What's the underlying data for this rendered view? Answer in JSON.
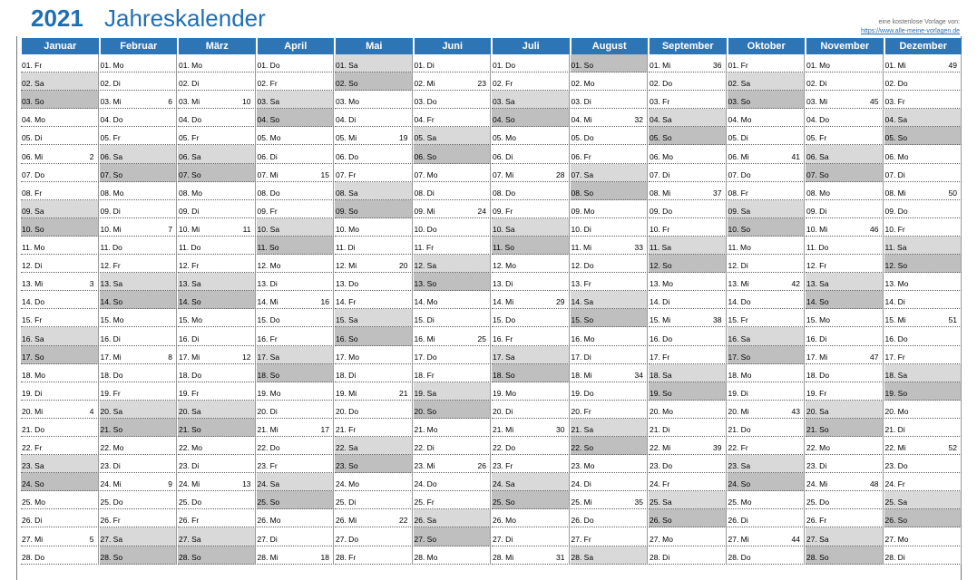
{
  "title": {
    "year": "2021",
    "name": "Jahreskalender"
  },
  "credit": {
    "line1": "eine kostenlose Vorlage von:",
    "link": "https://www.alle-meine-vorlagen.de"
  },
  "colors": {
    "header": "#2e75b6",
    "title": "#1f6fb2",
    "saturday": "#d9d9d9",
    "sunday": "#bfbfbf"
  },
  "months": [
    {
      "label": "Januar",
      "days": [
        {
          "t": "01. Fr"
        },
        {
          "t": "02. Sa",
          "c": "sat"
        },
        {
          "t": "03. So",
          "c": "sun"
        },
        {
          "t": "04. Mo"
        },
        {
          "t": "05. Di"
        },
        {
          "t": "06. Mi",
          "kw": "2"
        },
        {
          "t": "07. Do"
        },
        {
          "t": "08. Fr"
        },
        {
          "t": "09. Sa",
          "c": "sat"
        },
        {
          "t": "10. So",
          "c": "sun"
        },
        {
          "t": "11. Mo"
        },
        {
          "t": "12. Di"
        },
        {
          "t": "13. Mi",
          "kw": "3"
        },
        {
          "t": "14. Do"
        },
        {
          "t": "15. Fr"
        },
        {
          "t": "16. Sa",
          "c": "sat"
        },
        {
          "t": "17. So",
          "c": "sun"
        },
        {
          "t": "18. Mo"
        },
        {
          "t": "19. Di"
        },
        {
          "t": "20. Mi",
          "kw": "4"
        },
        {
          "t": "21. Do"
        },
        {
          "t": "22. Fr"
        },
        {
          "t": "23. Sa",
          "c": "sat"
        },
        {
          "t": "24. So",
          "c": "sun"
        },
        {
          "t": "25. Mo"
        },
        {
          "t": "26. Di"
        },
        {
          "t": "27. Mi",
          "kw": "5"
        },
        {
          "t": "28. Do"
        }
      ]
    },
    {
      "label": "Februar",
      "days": [
        {
          "t": "01. Mo"
        },
        {
          "t": "02. Di"
        },
        {
          "t": "03. Mi",
          "kw": "6"
        },
        {
          "t": "04. Do"
        },
        {
          "t": "05. Fr"
        },
        {
          "t": "06. Sa",
          "c": "sat"
        },
        {
          "t": "07. So",
          "c": "sun"
        },
        {
          "t": "08. Mo"
        },
        {
          "t": "09. Di"
        },
        {
          "t": "10. Mi",
          "kw": "7"
        },
        {
          "t": "11. Do"
        },
        {
          "t": "12. Fr"
        },
        {
          "t": "13. Sa",
          "c": "sat"
        },
        {
          "t": "14. So",
          "c": "sun"
        },
        {
          "t": "15. Mo"
        },
        {
          "t": "16. Di"
        },
        {
          "t": "17. Mi",
          "kw": "8"
        },
        {
          "t": "18. Do"
        },
        {
          "t": "19. Fr"
        },
        {
          "t": "20. Sa",
          "c": "sat"
        },
        {
          "t": "21. So",
          "c": "sun"
        },
        {
          "t": "22. Mo"
        },
        {
          "t": "23. Di"
        },
        {
          "t": "24. Mi",
          "kw": "9"
        },
        {
          "t": "25. Do"
        },
        {
          "t": "26. Fr"
        },
        {
          "t": "27. Sa",
          "c": "sat"
        },
        {
          "t": "28. So",
          "c": "sun"
        }
      ]
    },
    {
      "label": "März",
      "days": [
        {
          "t": "01. Mo"
        },
        {
          "t": "02. Di"
        },
        {
          "t": "03. Mi",
          "kw": "10"
        },
        {
          "t": "04. Do"
        },
        {
          "t": "05. Fr"
        },
        {
          "t": "06. Sa",
          "c": "sat"
        },
        {
          "t": "07. So",
          "c": "sun"
        },
        {
          "t": "08. Mo"
        },
        {
          "t": "09. Di"
        },
        {
          "t": "10. Mi",
          "kw": "11"
        },
        {
          "t": "11. Do"
        },
        {
          "t": "12. Fr"
        },
        {
          "t": "13. Sa",
          "c": "sat"
        },
        {
          "t": "14. So",
          "c": "sun"
        },
        {
          "t": "15. Mo"
        },
        {
          "t": "16. Di"
        },
        {
          "t": "17. Mi",
          "kw": "12"
        },
        {
          "t": "18. Do"
        },
        {
          "t": "19. Fr"
        },
        {
          "t": "20. Sa",
          "c": "sat"
        },
        {
          "t": "21. So",
          "c": "sun"
        },
        {
          "t": "22. Mo"
        },
        {
          "t": "23. Di"
        },
        {
          "t": "24. Mi",
          "kw": "13"
        },
        {
          "t": "25. Do"
        },
        {
          "t": "26. Fr"
        },
        {
          "t": "27. Sa",
          "c": "sat"
        },
        {
          "t": "28. So",
          "c": "sun"
        }
      ]
    },
    {
      "label": "April",
      "days": [
        {
          "t": "01. Do"
        },
        {
          "t": "02. Fr"
        },
        {
          "t": "03. Sa",
          "c": "sat"
        },
        {
          "t": "04. So",
          "c": "sun"
        },
        {
          "t": "05. Mo"
        },
        {
          "t": "06. Di"
        },
        {
          "t": "07. Mi",
          "kw": "15"
        },
        {
          "t": "08. Do"
        },
        {
          "t": "09. Fr"
        },
        {
          "t": "10. Sa",
          "c": "sat"
        },
        {
          "t": "11. So",
          "c": "sun"
        },
        {
          "t": "12. Mo"
        },
        {
          "t": "13. Di"
        },
        {
          "t": "14. Mi",
          "kw": "16"
        },
        {
          "t": "15. Do"
        },
        {
          "t": "16. Fr"
        },
        {
          "t": "17. Sa",
          "c": "sat"
        },
        {
          "t": "18. So",
          "c": "sun"
        },
        {
          "t": "19. Mo"
        },
        {
          "t": "20. Di"
        },
        {
          "t": "21. Mi",
          "kw": "17"
        },
        {
          "t": "22. Do"
        },
        {
          "t": "23. Fr"
        },
        {
          "t": "24. Sa",
          "c": "sat"
        },
        {
          "t": "25. So",
          "c": "sun"
        },
        {
          "t": "26. Mo"
        },
        {
          "t": "27. Di"
        },
        {
          "t": "28. Mi",
          "kw": "18"
        }
      ]
    },
    {
      "label": "Mai",
      "days": [
        {
          "t": "01. Sa",
          "c": "sat"
        },
        {
          "t": "02. So",
          "c": "sun"
        },
        {
          "t": "03. Mo"
        },
        {
          "t": "04. Di"
        },
        {
          "t": "05. Mi",
          "kw": "19"
        },
        {
          "t": "06. Do"
        },
        {
          "t": "07. Fr"
        },
        {
          "t": "08. Sa",
          "c": "sat"
        },
        {
          "t": "09. So",
          "c": "sun"
        },
        {
          "t": "10. Mo"
        },
        {
          "t": "11. Di"
        },
        {
          "t": "12. Mi",
          "kw": "20"
        },
        {
          "t": "13. Do"
        },
        {
          "t": "14. Fr"
        },
        {
          "t": "15. Sa",
          "c": "sat"
        },
        {
          "t": "16. So",
          "c": "sun"
        },
        {
          "t": "17. Mo"
        },
        {
          "t": "18. Di"
        },
        {
          "t": "19. Mi",
          "kw": "21"
        },
        {
          "t": "20. Do"
        },
        {
          "t": "21. Fr"
        },
        {
          "t": "22. Sa",
          "c": "sat"
        },
        {
          "t": "23. So",
          "c": "sun"
        },
        {
          "t": "24. Mo"
        },
        {
          "t": "25. Di"
        },
        {
          "t": "26. Mi",
          "kw": "22"
        },
        {
          "t": "27. Do"
        },
        {
          "t": "28. Fr"
        }
      ]
    },
    {
      "label": "Juni",
      "days": [
        {
          "t": "01. Di"
        },
        {
          "t": "02. Mi",
          "kw": "23"
        },
        {
          "t": "03. Do"
        },
        {
          "t": "04. Fr"
        },
        {
          "t": "05. Sa",
          "c": "sat"
        },
        {
          "t": "06. So",
          "c": "sun"
        },
        {
          "t": "07. Mo"
        },
        {
          "t": "08. Di"
        },
        {
          "t": "09. Mi",
          "kw": "24"
        },
        {
          "t": "10. Do"
        },
        {
          "t": "11. Fr"
        },
        {
          "t": "12. Sa",
          "c": "sat"
        },
        {
          "t": "13. So",
          "c": "sun"
        },
        {
          "t": "14. Mo"
        },
        {
          "t": "15. Di"
        },
        {
          "t": "16. Mi",
          "kw": "25"
        },
        {
          "t": "17. Do"
        },
        {
          "t": "18. Fr"
        },
        {
          "t": "19. Sa",
          "c": "sat"
        },
        {
          "t": "20. So",
          "c": "sun"
        },
        {
          "t": "21. Mo"
        },
        {
          "t": "22. Di"
        },
        {
          "t": "23. Mi",
          "kw": "26"
        },
        {
          "t": "24. Do"
        },
        {
          "t": "25. Fr"
        },
        {
          "t": "26. Sa",
          "c": "sat"
        },
        {
          "t": "27. So",
          "c": "sun"
        },
        {
          "t": "28. Mo"
        }
      ]
    },
    {
      "label": "Juli",
      "days": [
        {
          "t": "01. Do"
        },
        {
          "t": "02. Fr"
        },
        {
          "t": "03. Sa",
          "c": "sat"
        },
        {
          "t": "04. So",
          "c": "sun"
        },
        {
          "t": "05. Mo"
        },
        {
          "t": "06. Di"
        },
        {
          "t": "07. Mi",
          "kw": "28"
        },
        {
          "t": "08. Do"
        },
        {
          "t": "09. Fr"
        },
        {
          "t": "10. Sa",
          "c": "sat"
        },
        {
          "t": "11. So",
          "c": "sun"
        },
        {
          "t": "12. Mo"
        },
        {
          "t": "13. Di"
        },
        {
          "t": "14. Mi",
          "kw": "29"
        },
        {
          "t": "15. Do"
        },
        {
          "t": "16. Fr"
        },
        {
          "t": "17. Sa",
          "c": "sat"
        },
        {
          "t": "18. So",
          "c": "sun"
        },
        {
          "t": "19. Mo"
        },
        {
          "t": "20. Di"
        },
        {
          "t": "21. Mi",
          "kw": "30"
        },
        {
          "t": "22. Do"
        },
        {
          "t": "23. Fr"
        },
        {
          "t": "24. Sa",
          "c": "sat"
        },
        {
          "t": "25. So",
          "c": "sun"
        },
        {
          "t": "26. Mo"
        },
        {
          "t": "27. Di"
        },
        {
          "t": "28. Mi",
          "kw": "31"
        }
      ]
    },
    {
      "label": "August",
      "days": [
        {
          "t": "01. So",
          "c": "sun"
        },
        {
          "t": "02. Mo"
        },
        {
          "t": "03. Di"
        },
        {
          "t": "04. Mi",
          "kw": "32"
        },
        {
          "t": "05. Do"
        },
        {
          "t": "06. Fr"
        },
        {
          "t": "07. Sa",
          "c": "sat"
        },
        {
          "t": "08. So",
          "c": "sun"
        },
        {
          "t": "09. Mo"
        },
        {
          "t": "10. Di"
        },
        {
          "t": "11. Mi",
          "kw": "33"
        },
        {
          "t": "12. Do"
        },
        {
          "t": "13. Fr"
        },
        {
          "t": "14. Sa",
          "c": "sat"
        },
        {
          "t": "15. So",
          "c": "sun"
        },
        {
          "t": "16. Mo"
        },
        {
          "t": "17. Di"
        },
        {
          "t": "18. Mi",
          "kw": "34"
        },
        {
          "t": "19. Do"
        },
        {
          "t": "20. Fr"
        },
        {
          "t": "21. Sa",
          "c": "sat"
        },
        {
          "t": "22. So",
          "c": "sun"
        },
        {
          "t": "23. Mo"
        },
        {
          "t": "24. Di"
        },
        {
          "t": "25. Mi",
          "kw": "35"
        },
        {
          "t": "26. Do"
        },
        {
          "t": "27. Fr"
        },
        {
          "t": "28. Sa",
          "c": "sat"
        }
      ]
    },
    {
      "label": "September",
      "days": [
        {
          "t": "01. Mi",
          "kw": "36"
        },
        {
          "t": "02. Do"
        },
        {
          "t": "03. Fr"
        },
        {
          "t": "04. Sa",
          "c": "sat"
        },
        {
          "t": "05. So",
          "c": "sun"
        },
        {
          "t": "06. Mo"
        },
        {
          "t": "07. Di"
        },
        {
          "t": "08. Mi",
          "kw": "37"
        },
        {
          "t": "09. Do"
        },
        {
          "t": "10. Fr"
        },
        {
          "t": "11. Sa",
          "c": "sat"
        },
        {
          "t": "12. So",
          "c": "sun"
        },
        {
          "t": "13. Mo"
        },
        {
          "t": "14. Di"
        },
        {
          "t": "15. Mi",
          "kw": "38"
        },
        {
          "t": "16. Do"
        },
        {
          "t": "17. Fr"
        },
        {
          "t": "18. Sa",
          "c": "sat"
        },
        {
          "t": "19. So",
          "c": "sun"
        },
        {
          "t": "20. Mo"
        },
        {
          "t": "21. Di"
        },
        {
          "t": "22. Mi",
          "kw": "39"
        },
        {
          "t": "23. Do"
        },
        {
          "t": "24. Fr"
        },
        {
          "t": "25. Sa",
          "c": "sat"
        },
        {
          "t": "26. So",
          "c": "sun"
        },
        {
          "t": "27. Mo"
        },
        {
          "t": "28. Di"
        }
      ]
    },
    {
      "label": "Oktober",
      "days": [
        {
          "t": "01. Fr"
        },
        {
          "t": "02. Sa",
          "c": "sat"
        },
        {
          "t": "03. So",
          "c": "sun"
        },
        {
          "t": "04. Mo"
        },
        {
          "t": "05. Di"
        },
        {
          "t": "06. Mi",
          "kw": "41"
        },
        {
          "t": "07. Do"
        },
        {
          "t": "08. Fr"
        },
        {
          "t": "09. Sa",
          "c": "sat"
        },
        {
          "t": "10. So",
          "c": "sun"
        },
        {
          "t": "11. Mo"
        },
        {
          "t": "12. Di"
        },
        {
          "t": "13. Mi",
          "kw": "42"
        },
        {
          "t": "14. Do"
        },
        {
          "t": "15. Fr"
        },
        {
          "t": "16. Sa",
          "c": "sat"
        },
        {
          "t": "17. So",
          "c": "sun"
        },
        {
          "t": "18. Mo"
        },
        {
          "t": "19. Di"
        },
        {
          "t": "20. Mi",
          "kw": "43"
        },
        {
          "t": "21. Do"
        },
        {
          "t": "22. Fr"
        },
        {
          "t": "23. Sa",
          "c": "sat"
        },
        {
          "t": "24. So",
          "c": "sun"
        },
        {
          "t": "25. Mo"
        },
        {
          "t": "26. Di"
        },
        {
          "t": "27. Mi",
          "kw": "44"
        },
        {
          "t": "28. Do"
        }
      ]
    },
    {
      "label": "November",
      "days": [
        {
          "t": "01. Mo"
        },
        {
          "t": "02. Di"
        },
        {
          "t": "03. Mi",
          "kw": "45"
        },
        {
          "t": "04. Do"
        },
        {
          "t": "05. Fr"
        },
        {
          "t": "06. Sa",
          "c": "sat"
        },
        {
          "t": "07. So",
          "c": "sun"
        },
        {
          "t": "08. Mo"
        },
        {
          "t": "09. Di"
        },
        {
          "t": "10. Mi",
          "kw": "46"
        },
        {
          "t": "11. Do"
        },
        {
          "t": "12. Fr"
        },
        {
          "t": "13. Sa",
          "c": "sat"
        },
        {
          "t": "14. So",
          "c": "sun"
        },
        {
          "t": "15. Mo"
        },
        {
          "t": "16. Di"
        },
        {
          "t": "17. Mi",
          "kw": "47"
        },
        {
          "t": "18. Do"
        },
        {
          "t": "19. Fr"
        },
        {
          "t": "20. Sa",
          "c": "sat"
        },
        {
          "t": "21. So",
          "c": "sun"
        },
        {
          "t": "22. Mo"
        },
        {
          "t": "23. Di"
        },
        {
          "t": "24. Mi",
          "kw": "48"
        },
        {
          "t": "25. Do"
        },
        {
          "t": "26. Fr"
        },
        {
          "t": "27. Sa",
          "c": "sat"
        },
        {
          "t": "28. So",
          "c": "sun"
        }
      ]
    },
    {
      "label": "Dezember",
      "days": [
        {
          "t": "01. Mi",
          "kw": "49"
        },
        {
          "t": "02. Do"
        },
        {
          "t": "03. Fr"
        },
        {
          "t": "04. Sa",
          "c": "sat"
        },
        {
          "t": "05. So",
          "c": "sun"
        },
        {
          "t": "06. Mo"
        },
        {
          "t": "07. Di"
        },
        {
          "t": "08. Mi",
          "kw": "50"
        },
        {
          "t": "09. Do"
        },
        {
          "t": "10. Fr"
        },
        {
          "t": "11. Sa",
          "c": "sat"
        },
        {
          "t": "12. So",
          "c": "sun"
        },
        {
          "t": "13. Mo"
        },
        {
          "t": "14. Di"
        },
        {
          "t": "15. Mi",
          "kw": "51"
        },
        {
          "t": "16. Do"
        },
        {
          "t": "17. Fr"
        },
        {
          "t": "18. Sa",
          "c": "sat"
        },
        {
          "t": "19. So",
          "c": "sun"
        },
        {
          "t": "20. Mo"
        },
        {
          "t": "21. Di"
        },
        {
          "t": "22. Mi",
          "kw": "52"
        },
        {
          "t": "23. Do"
        },
        {
          "t": "24. Fr"
        },
        {
          "t": "25. Sa",
          "c": "sat"
        },
        {
          "t": "26. So",
          "c": "sun"
        },
        {
          "t": "27. Mo"
        },
        {
          "t": "28. Di"
        }
      ]
    }
  ]
}
